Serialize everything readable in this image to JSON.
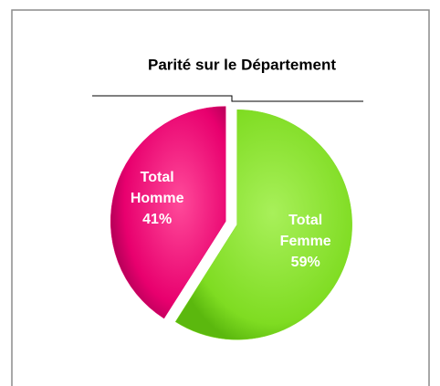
{
  "chart_data": {
    "type": "pie",
    "title": "Parité sur le Département",
    "categories": [
      "Total Femme",
      "Total Homme"
    ],
    "values": [
      59,
      41
    ],
    "value_labels": [
      "59%",
      "41%"
    ],
    "colors": [
      "#7fdc22",
      "#e8006e"
    ]
  }
}
